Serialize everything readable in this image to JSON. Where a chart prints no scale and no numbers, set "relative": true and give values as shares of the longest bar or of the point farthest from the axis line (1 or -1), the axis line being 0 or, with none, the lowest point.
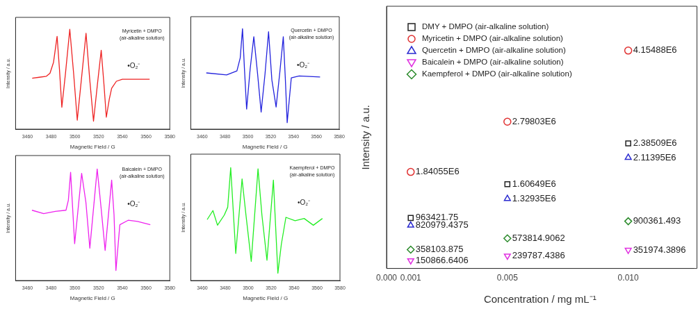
{
  "chart_data": [
    {
      "type": "line",
      "relative": true,
      "xlim": [
        3450,
        3580
      ],
      "xticks": [
        3460,
        3480,
        3500,
        3520,
        3540,
        3560,
        3580
      ],
      "xlabel": "Magnetic Field / G",
      "ylabel": "Intensity / a.u.",
      "tick_labels": "x",
      "marker": "none",
      "annotations": [
        "Myricetin + DMPO\n(air-alkaline solution)",
        "•O₂⁻"
      ],
      "series": [
        {
          "color": "#ee2222",
          "x": [
            3464,
            3470,
            3476,
            3479,
            3482,
            3485,
            3487,
            3489,
            3492,
            3495.7,
            3499,
            3502,
            3505.5,
            3509.4,
            3512.5,
            3515.7,
            3519,
            3522.2,
            3524.5,
            3526.5,
            3529,
            3531,
            3535,
            3540,
            3550,
            3563
          ],
          "values": [
            0.51,
            0.52,
            0.53,
            0.56,
            0.67,
            0.93,
            0.6,
            0.22,
            0.55,
            1.0,
            0.55,
            0.09,
            0.5,
            0.96,
            0.5,
            0.08,
            0.45,
            0.79,
            0.45,
            0.12,
            0.3,
            0.41,
            0.48,
            0.5,
            0.5,
            0.5
          ]
        }
      ]
    },
    {
      "type": "line",
      "relative": true,
      "xlim": [
        3450,
        3580
      ],
      "xticks": [
        3460,
        3480,
        3500,
        3520,
        3540,
        3560,
        3580
      ],
      "xlabel": "Magnetic Field / G",
      "ylabel": "Intensity / a.u.",
      "tick_labels": "x",
      "marker": "none",
      "annotations": [
        "Quercetin + DMPO\n(air-alkaline solution)",
        "•O₂⁻"
      ],
      "series": [
        {
          "color": "#2222dd",
          "x": [
            3463.6,
            3481.4,
            3490.4,
            3493.3,
            3495.3,
            3497,
            3498.9,
            3502,
            3505.2,
            3508.5,
            3511.6,
            3515,
            3518.1,
            3521,
            3524.7,
            3528,
            3531,
            3532.8,
            3534.4,
            3538,
            3544.9,
            3563.2
          ],
          "values": [
            0.56,
            0.54,
            0.58,
            0.71,
            1.0,
            0.6,
            0.2,
            0.6,
            0.92,
            0.55,
            0.17,
            0.55,
            0.97,
            0.49,
            0.22,
            0.57,
            0.92,
            0.5,
            0.065,
            0.51,
            0.53,
            0.52
          ]
        }
      ]
    },
    {
      "type": "line",
      "relative": true,
      "xlim": [
        3450,
        3580
      ],
      "xticks": [
        3460,
        3480,
        3500,
        3520,
        3540,
        3560,
        3580
      ],
      "xlabel": "Magnetic Field / G",
      "ylabel": "Intensity / a.u.",
      "tick_labels": "x",
      "marker": "none",
      "annotations": [
        "Baicalein + DMPO\n(air-alkaline solution)",
        "•O₂⁻"
      ],
      "series": [
        {
          "color": "#ee22ee",
          "x": [
            3463.8,
            3473.7,
            3483.6,
            3492.5,
            3494.5,
            3496.4,
            3499.8,
            3505.7,
            3509.3,
            3512.6,
            3518.8,
            3522.1,
            3525.5,
            3531,
            3533,
            3534.6,
            3537.9,
            3544.9,
            3552.8,
            3563.6
          ],
          "values": [
            0.63,
            0.6,
            0.62,
            0.63,
            0.72,
            0.97,
            0.33,
            0.96,
            0.7,
            0.29,
            1.0,
            0.65,
            0.27,
            0.9,
            0.59,
            0.09,
            0.5,
            0.54,
            0.53,
            0.5
          ]
        }
      ]
    },
    {
      "type": "line",
      "relative": true,
      "xlim": [
        3450,
        3580
      ],
      "xticks": [
        3460,
        3480,
        3500,
        3520,
        3540,
        3560,
        3580
      ],
      "xlabel": "Magnetic Field / G",
      "ylabel": "Intensity / a.u.",
      "tick_labels": "x",
      "marker": "none",
      "annotations": [
        "Kaempferol + DMPO\n(air-alkaline solution)",
        "•O₂⁻"
      ],
      "series": [
        {
          "color": "#22ee22",
          "x": [
            3464.3,
            3469.3,
            3473.3,
            3479.2,
            3482.2,
            3484.8,
            3489.2,
            3494.7,
            3498.1,
            3502.7,
            3508.6,
            3512,
            3516.4,
            3522,
            3525.9,
            3528.9,
            3532.9,
            3540.9,
            3548.8,
            3556.8,
            3564.7
          ],
          "values": [
            0.54,
            0.62,
            0.49,
            0.58,
            0.65,
            1.0,
            0.24,
            0.9,
            0.58,
            0.17,
            0.99,
            0.58,
            0.18,
            0.89,
            0.065,
            0.32,
            0.56,
            0.53,
            0.55,
            0.49,
            0.55
          ]
        }
      ]
    },
    {
      "type": "scatter",
      "x": [
        0.001,
        0.005,
        0.01
      ],
      "xlim": [
        0,
        0.0127
      ],
      "xticks": [
        {
          "value": 0,
          "label": "0.000"
        },
        {
          "value": 0.001,
          "label": "0.001"
        },
        {
          "value": 0.005,
          "label": "0.005"
        },
        {
          "value": 0.01,
          "label": "0.010"
        }
      ],
      "ylim": [
        0,
        5000000
      ],
      "xlabel": "Concentration / mg mL⁻¹",
      "ylabel": "Intensity / a.u.",
      "tick_labels": "x",
      "legend": "top left",
      "series": [
        {
          "name": "DMY + DMPO (air-alkaline solution)",
          "color": "#222222",
          "marker": "square",
          "values": [
            963421.75,
            1606490,
            2385090
          ],
          "value_labels": [
            "963421.75",
            "1.60649E6",
            "2.38509E6"
          ]
        },
        {
          "name": "Myricetin + DMPO (air-alkaline solution)",
          "color": "#e03030",
          "marker": "circle",
          "values": [
            1840550,
            2798030,
            4154880
          ],
          "value_labels": [
            "1.84055E6",
            "2.79803E6",
            "4.15488E6"
          ]
        },
        {
          "name": "Quercetin + DMPO (air-alkaline solution)",
          "color": "#2a2ad0",
          "marker": "triangle",
          "values": [
            820979.4375,
            1329350,
            2113950
          ],
          "value_labels": [
            "820979.4375",
            "1.32935E6",
            "2.11395E6"
          ]
        },
        {
          "name": "Baicalein + DMPO (air-alkaline solution)",
          "color": "#e030e0",
          "marker": "triangle-down",
          "values": [
            150866.6406,
            239787.4386,
            351974.3896
          ],
          "value_labels": [
            "150866.6406",
            "239787.4386",
            "351974.3896"
          ]
        },
        {
          "name": "Kaempferol + DMPO (air-alkaline solution)",
          "color": "#2a8a2a",
          "marker": "diamond",
          "values": [
            358103.875,
            573814.9062,
            900361.493
          ],
          "value_labels": [
            "358103.875",
            "573814.9062",
            "900361.493"
          ]
        }
      ]
    }
  ]
}
